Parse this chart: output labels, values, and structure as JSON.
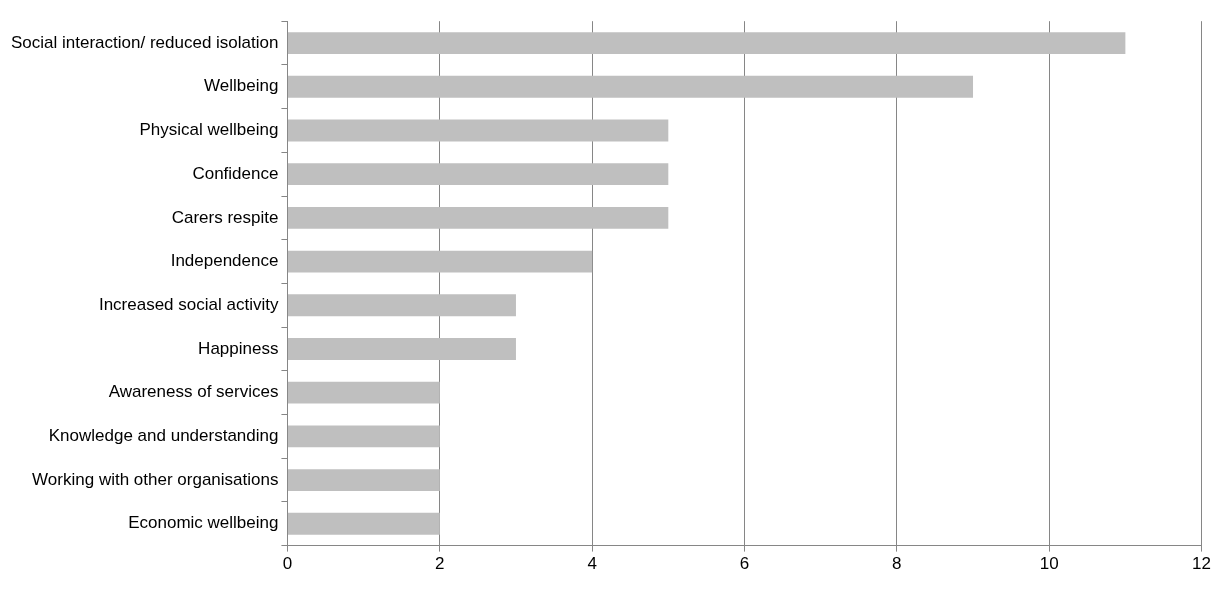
{
  "chart_data": {
    "type": "bar",
    "orientation": "horizontal",
    "categories": [
      "Social interaction/ reduced isolation",
      "Wellbeing",
      "Physical wellbeing",
      "Confidence",
      "Carers respite",
      "Independence",
      "Increased social activity",
      "Happiness",
      "Awareness of services",
      "Knowledge and understanding",
      "Working with other organisations",
      "Economic wellbeing"
    ],
    "values": [
      11,
      9,
      5,
      5,
      5,
      4,
      3,
      3,
      2,
      2,
      2,
      2
    ],
    "color": "#bfbfbf",
    "xlim": [
      0,
      12
    ],
    "xticks": [
      0,
      2,
      4,
      6,
      8,
      10,
      12
    ],
    "grid": "x",
    "legend": false
  }
}
